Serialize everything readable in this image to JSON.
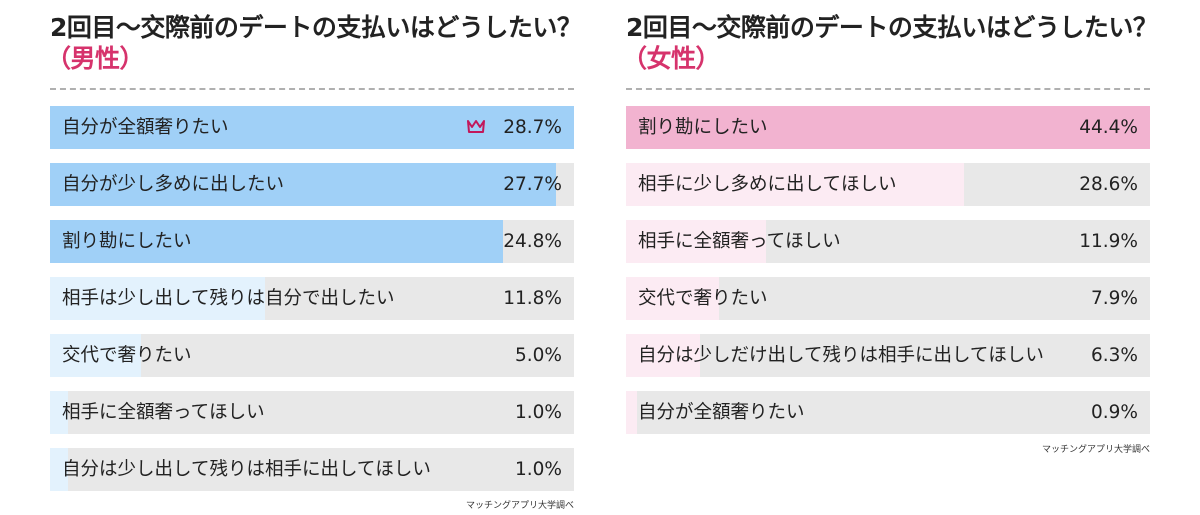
{
  "colors": {
    "male_title_accent": "#d6336c",
    "female_title_accent": "#d6336c",
    "male_bar": "#a0d0f7",
    "male_bar_light": "#e3f2fd",
    "female_bar": "#f2b3d0",
    "female_bar_light": "#fcebf3",
    "bar_background": "#e8e8e8",
    "crown": "#c2185b"
  },
  "chart_data": [
    {
      "type": "bar",
      "orientation": "horizontal",
      "title": "2回目〜交際前のデートの支払いはどうしたい？",
      "subtitle": "（男性）",
      "categories": [
        "自分が全額奢りたい",
        "自分が少し多めに出したい",
        "割り勘にしたい",
        "相手は少し出して残りは自分で出したい",
        "交代で奢りたい",
        "相手に全額奢ってほしい",
        "自分は少し出して残りは相手に出してほしい"
      ],
      "values": [
        28.7,
        27.7,
        24.8,
        11.8,
        5.0,
        1.0,
        1.0
      ],
      "value_labels": [
        "28.7%",
        "27.7%",
        "24.8%",
        "11.8%",
        "5.0%",
        "1.0%",
        "1.0%"
      ],
      "xlim": [
        0,
        28.7
      ],
      "unit": "%",
      "highlight_index": 0,
      "highlight_icon": "crown-icon",
      "source": "マッチングアプリ大学調べ"
    },
    {
      "type": "bar",
      "orientation": "horizontal",
      "title": "2回目〜交際前のデートの支払いはどうしたい？",
      "subtitle": "（女性）",
      "categories": [
        "割り勘にしたい",
        "相手に少し多めに出してほしい",
        "相手に全額奢ってほしい",
        "交代で奢りたい",
        "自分は少しだけ出して残りは相手に出してほしい",
        "自分が全額奢りたい"
      ],
      "values": [
        44.4,
        28.6,
        11.9,
        7.9,
        6.3,
        0.9
      ],
      "value_labels": [
        "44.4%",
        "28.6%",
        "11.9%",
        "7.9%",
        "6.3%",
        "0.9%"
      ],
      "xlim": [
        0,
        44.4
      ],
      "unit": "%",
      "source": "マッチングアプリ大学調べ"
    }
  ]
}
